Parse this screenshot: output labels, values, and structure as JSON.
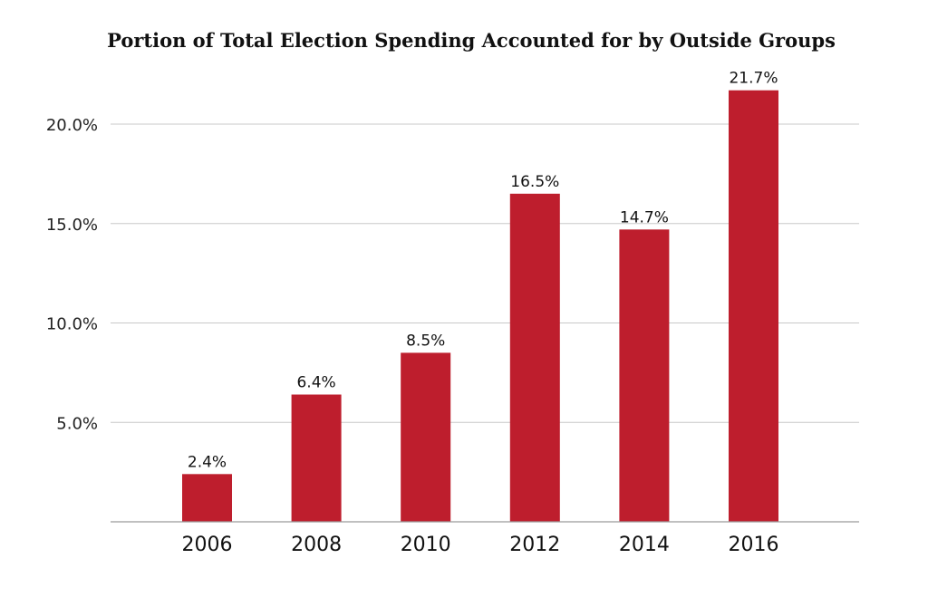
{
  "chart_data": {
    "type": "bar",
    "title": "Portion of Total Election Spending Accounted for by Outside Groups",
    "categories": [
      "2006",
      "2008",
      "2010",
      "2012",
      "2014",
      "2016"
    ],
    "values": [
      2.4,
      6.4,
      8.5,
      16.5,
      14.7,
      21.7
    ],
    "data_labels": [
      "2.4%",
      "6.4%",
      "8.5%",
      "16.5%",
      "14.7%",
      "21.7%"
    ],
    "yticks": [
      5,
      10,
      15,
      20
    ],
    "ytick_labels": [
      "5.0%",
      "10.0%",
      "15.0%",
      "20.0%"
    ],
    "ylim": [
      0,
      22
    ],
    "xlabel": "",
    "ylabel": "",
    "grid": true,
    "legend": "none",
    "bar_color": "#be1e2d"
  }
}
